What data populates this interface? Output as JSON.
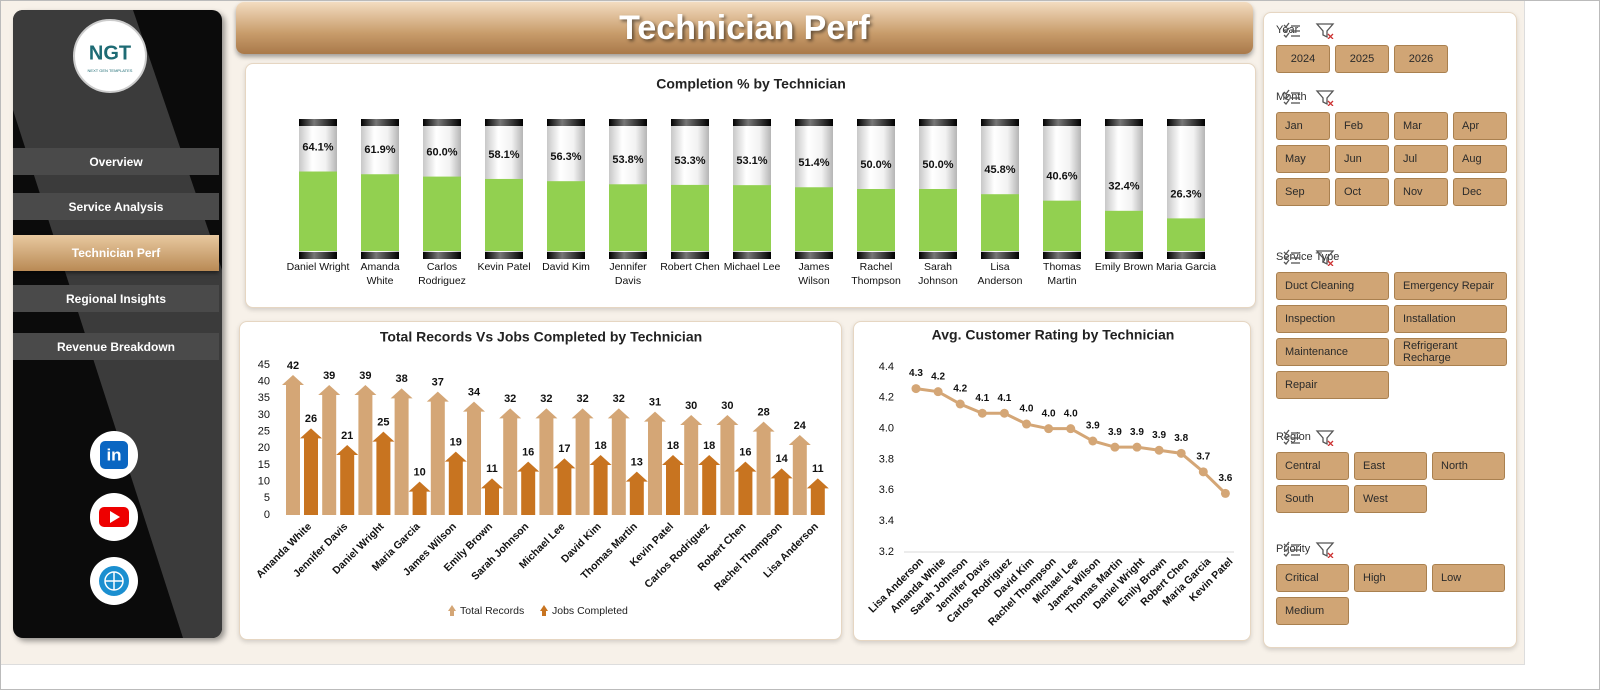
{
  "sidebar": {
    "logo": {
      "title": "NGT",
      "subtitle": "NEXT GEN TEMPLATES"
    },
    "nav": [
      "Overview",
      "Service Analysis",
      "Technician Perf",
      "Regional Insights",
      "Revenue Breakdown"
    ]
  },
  "header": {
    "title": "Technician Perf"
  },
  "chart_data": [
    {
      "type": "bar",
      "title": "Completion % by Technician",
      "color": "#92d050",
      "categories": [
        "Daniel Wright",
        "Amanda White",
        "Carlos Rodriguez",
        "Kevin Patel",
        "David Kim",
        "Jennifer Davis",
        "Robert Chen",
        "Michael Lee",
        "James Wilson",
        "Rachel Thompson",
        "Sarah Johnson",
        "Lisa Anderson",
        "Thomas Martin",
        "Emily Brown",
        "Maria Garcia"
      ],
      "values": [
        64.1,
        61.9,
        60.0,
        58.1,
        56.3,
        53.8,
        53.3,
        53.1,
        51.4,
        50.0,
        50.0,
        45.8,
        40.6,
        32.4,
        26.3
      ],
      "value_labels": [
        "64.1%",
        "61.9%",
        "60.0%",
        "58.1%",
        "56.3%",
        "53.8%",
        "53.3%",
        "53.1%",
        "51.4%",
        "50.0%",
        "50.0%",
        "45.8%",
        "40.6%",
        "32.4%",
        "26.3%"
      ],
      "ylim": [
        0,
        100
      ]
    },
    {
      "type": "bar",
      "title": "Total Records Vs Jobs Completed by Technician",
      "categories": [
        "Amanda White",
        "Jennifer Davis",
        "Daniel Wright",
        "Maria Garcia",
        "James Wilson",
        "Emily Brown",
        "Sarah Johnson",
        "Michael Lee",
        "David Kim",
        "Thomas Martin",
        "Kevin Patel",
        "Carlos Rodriguez",
        "Robert Chen",
        "Rachel Thompson",
        "Lisa Anderson"
      ],
      "series": [
        {
          "name": "Total Records",
          "color": "#d4a676",
          "values": [
            42,
            39,
            39,
            38,
            37,
            34,
            32,
            32,
            32,
            32,
            31,
            30,
            30,
            28,
            24
          ]
        },
        {
          "name": "Jobs Completed",
          "color": "#c87420",
          "values": [
            26,
            21,
            25,
            10,
            19,
            11,
            16,
            17,
            18,
            13,
            18,
            18,
            16,
            14,
            11
          ]
        }
      ],
      "ylim": [
        0,
        45
      ],
      "yticks": [
        0,
        5,
        10,
        15,
        20,
        25,
        30,
        35,
        40,
        45
      ],
      "grid": false,
      "legend": "bottom"
    },
    {
      "type": "line",
      "title": "Avg. Customer Rating by Technician",
      "color": "#d4a676",
      "categories": [
        "Lisa Anderson",
        "Amanda White",
        "Sarah Johnson",
        "Jennifer Davis",
        "Carlos Rodriguez",
        "David Kim",
        "Rachel Thompson",
        "Michael Lee",
        "James Wilson",
        "Thomas Martin",
        "Daniel Wright",
        "Emily Brown",
        "Robert Chen",
        "Maria Garcia",
        "Kevin Patel"
      ],
      "values": [
        4.26,
        4.24,
        4.16,
        4.1,
        4.1,
        4.03,
        4.0,
        4.0,
        3.92,
        3.88,
        3.88,
        3.86,
        3.84,
        3.72,
        3.58
      ],
      "value_labels": [
        "4.3",
        "4.2",
        "4.2",
        "4.1",
        "4.1",
        "4.0",
        "4.0",
        "4.0",
        "3.9",
        "3.9",
        "3.9",
        "3.9",
        "3.8",
        "3.7",
        "3.6"
      ],
      "ylim": [
        3.2,
        4.4
      ],
      "yticks": [
        3.2,
        3.4,
        3.6,
        3.8,
        {
          "value": 4,
          "label": "4.0"
        },
        4.2,
        4.4
      ],
      "grid": false
    }
  ],
  "slicers": [
    {
      "title": "Year",
      "items": [
        "2024",
        "2025",
        "2026"
      ]
    },
    {
      "title": "Month",
      "items": [
        "Jan",
        "Feb",
        "Mar",
        "Apr",
        "May",
        "Jun",
        "Jul",
        "Aug",
        "Sep",
        "Oct",
        "Nov",
        "Dec"
      ]
    },
    {
      "title": "Service Type",
      "items": [
        "Duct Cleaning",
        "Emergency Repair",
        "Inspection",
        "Installation",
        "Maintenance",
        "Refrigerant Recharge",
        "Repair"
      ]
    },
    {
      "title": "Region",
      "items": [
        "Central",
        "East",
        "North",
        "South",
        "West"
      ]
    },
    {
      "title": "Priority",
      "items": [
        "Critical",
        "High",
        "Low",
        "Medium"
      ]
    }
  ]
}
